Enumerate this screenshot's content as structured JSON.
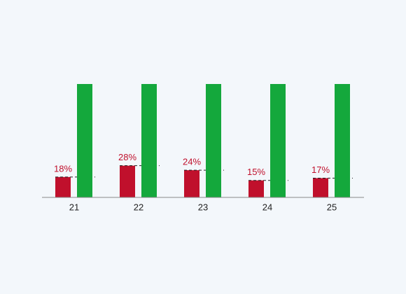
{
  "chart_data": {
    "type": "bar",
    "categories": [
      "21",
      "22",
      "23",
      "24",
      "25"
    ],
    "series": [
      {
        "color": "#c0102c",
        "values": [
          18,
          28,
          24,
          15,
          17
        ],
        "value_labels": [
          "18%",
          "28%",
          "24%",
          "15%",
          "17%"
        ]
      },
      {
        "color": "#14a83c",
        "values": [
          100,
          100,
          100,
          100,
          100
        ]
      }
    ],
    "ylim": [
      0,
      100
    ]
  }
}
